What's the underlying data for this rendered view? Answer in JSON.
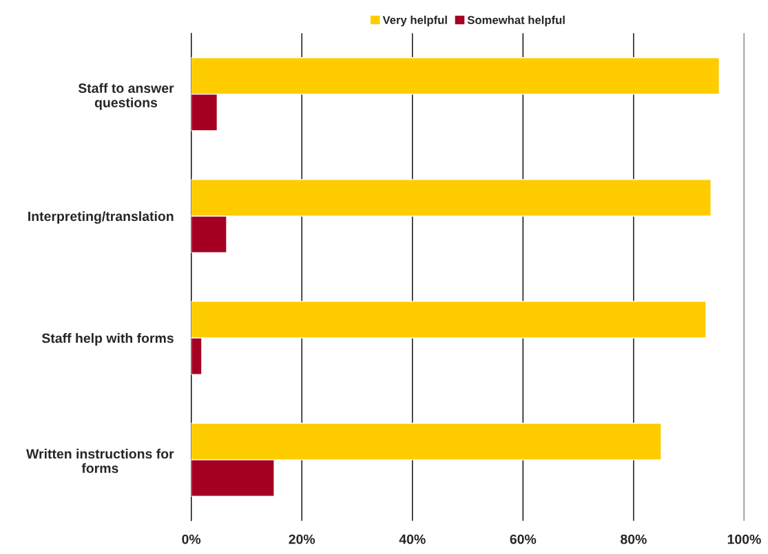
{
  "chart_data": {
    "type": "bar",
    "orientation": "horizontal",
    "categories": [
      "Staff to answer\nquestions",
      "Interpreting/translation",
      "Staff help with forms",
      "Written instructions for\nforms"
    ],
    "series": [
      {
        "name": "Very helpful",
        "color": "#ffcc00",
        "values": [
          95.5,
          94.0,
          93.1,
          85.0
        ]
      },
      {
        "name": "Somewhat helpful",
        "color": "#a50021",
        "values": [
          4.7,
          6.4,
          1.9,
          15.0
        ]
      }
    ],
    "xlim": [
      0,
      100
    ],
    "xticks": [
      {
        "value": 0,
        "label": "0%"
      },
      {
        "value": 20,
        "label": "20%"
      },
      {
        "value": 40,
        "label": "40%"
      },
      {
        "value": 60,
        "label": "60%"
      },
      {
        "value": 80,
        "label": "80%"
      },
      {
        "value": 100,
        "label": "100%"
      }
    ],
    "grid": "x",
    "legend": "top"
  }
}
